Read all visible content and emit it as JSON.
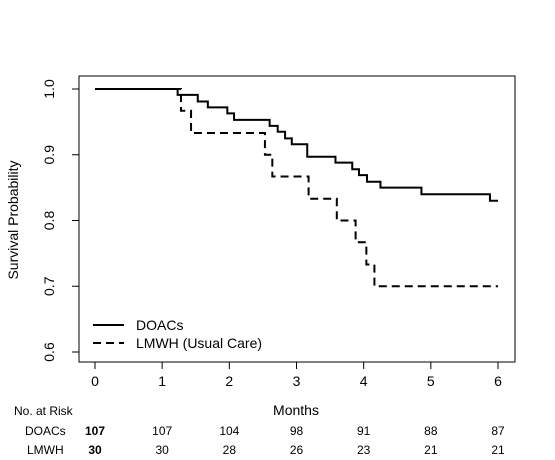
{
  "chart_data": {
    "type": "line",
    "subtype": "kaplan-meier step",
    "xlabel": "Months",
    "ylabel": "Survival Probability",
    "xlim": [
      0,
      6
    ],
    "ylim": [
      0.6,
      1.0
    ],
    "x_ticks": [
      "0",
      "1",
      "2",
      "3",
      "4",
      "5",
      "6"
    ],
    "y_ticks": [
      "0.6",
      "0.7",
      "0.8",
      "0.9",
      "1.0"
    ],
    "grid": false,
    "legend_position": "bottom-left",
    "series": [
      {
        "name": "DOACs",
        "line_style": "solid",
        "x": [
          0,
          1.23,
          1.53,
          1.68,
          1.97,
          2.07,
          2.6,
          2.72,
          2.83,
          2.93,
          3.16,
          3.58,
          3.83,
          3.93,
          4.05,
          4.25,
          4.86,
          5.88,
          6.0
        ],
        "y": [
          1.0,
          0.991,
          0.981,
          0.972,
          0.963,
          0.953,
          0.944,
          0.935,
          0.925,
          0.916,
          0.897,
          0.888,
          0.878,
          0.869,
          0.859,
          0.85,
          0.84,
          0.83,
          0.83
        ]
      },
      {
        "name": "LMWH (Usual Care)",
        "line_style": "dashed",
        "x": [
          0,
          1.28,
          1.43,
          2.53,
          2.64,
          3.18,
          3.6,
          3.88,
          4.04,
          4.16,
          6.0
        ],
        "y": [
          1.0,
          0.967,
          0.933,
          0.9,
          0.867,
          0.833,
          0.8,
          0.767,
          0.733,
          0.7,
          0.7
        ]
      }
    ],
    "risk_table": {
      "title": "No. at Risk",
      "times": [
        "0",
        "1",
        "2",
        "3",
        "4",
        "5",
        "6"
      ],
      "rows": [
        {
          "label": "DOACs",
          "values": [
            "107",
            "107",
            "104",
            "98",
            "91",
            "88",
            "87"
          ]
        },
        {
          "label": "LMWH",
          "values": [
            "30",
            "30",
            "28",
            "26",
            "23",
            "21",
            "21"
          ]
        }
      ]
    }
  }
}
